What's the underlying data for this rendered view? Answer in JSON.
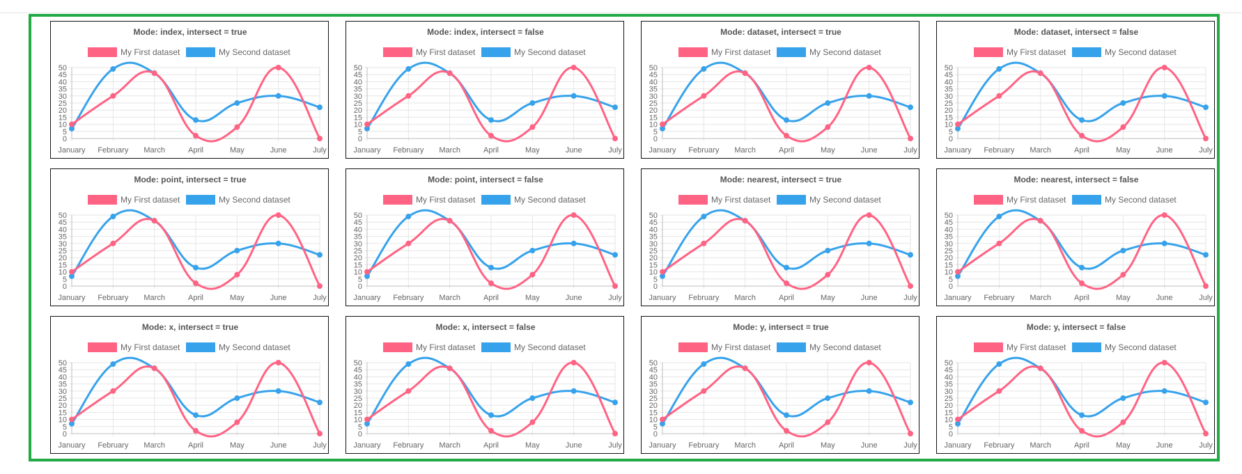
{
  "page": {
    "frame_color": "#22aa44"
  },
  "legend": {
    "first_label": "My First dataset",
    "second_label": "My Second dataset",
    "first_color": "#ff6384",
    "second_color": "#36a2eb"
  },
  "chart_data": [
    {
      "type": "line",
      "title": "Mode: index, intersect = true",
      "categories": [
        "January",
        "February",
        "March",
        "April",
        "May",
        "June",
        "July"
      ],
      "series": [
        {
          "name": "My First dataset",
          "values": [
            10,
            30,
            46,
            2,
            8,
            50,
            0
          ]
        },
        {
          "name": "My Second dataset",
          "values": [
            7,
            49,
            46,
            13,
            25,
            30,
            22
          ]
        }
      ],
      "ylim": [
        0,
        50
      ],
      "yticks": [
        0,
        5,
        10,
        15,
        20,
        25,
        30,
        35,
        40,
        45,
        50
      ]
    },
    {
      "type": "line",
      "title": "Mode: index, intersect = false",
      "categories": [
        "January",
        "February",
        "March",
        "April",
        "May",
        "June",
        "July"
      ],
      "series": [
        {
          "name": "My First dataset",
          "values": [
            10,
            30,
            46,
            2,
            8,
            50,
            0
          ]
        },
        {
          "name": "My Second dataset",
          "values": [
            7,
            49,
            46,
            13,
            25,
            30,
            22
          ]
        }
      ],
      "ylim": [
        0,
        50
      ],
      "yticks": [
        0,
        5,
        10,
        15,
        20,
        25,
        30,
        35,
        40,
        45,
        50
      ]
    },
    {
      "type": "line",
      "title": "Mode: dataset, intersect = true",
      "categories": [
        "January",
        "February",
        "March",
        "April",
        "May",
        "June",
        "July"
      ],
      "series": [
        {
          "name": "My First dataset",
          "values": [
            10,
            30,
            46,
            2,
            8,
            50,
            0
          ]
        },
        {
          "name": "My Second dataset",
          "values": [
            7,
            49,
            46,
            13,
            25,
            30,
            22
          ]
        }
      ],
      "ylim": [
        0,
        50
      ],
      "yticks": [
        0,
        5,
        10,
        15,
        20,
        25,
        30,
        35,
        40,
        45,
        50
      ]
    },
    {
      "type": "line",
      "title": "Mode: dataset, intersect = false",
      "categories": [
        "January",
        "February",
        "March",
        "April",
        "May",
        "June",
        "July"
      ],
      "series": [
        {
          "name": "My First dataset",
          "values": [
            10,
            30,
            46,
            2,
            8,
            50,
            0
          ]
        },
        {
          "name": "My Second dataset",
          "values": [
            7,
            49,
            46,
            13,
            25,
            30,
            22
          ]
        }
      ],
      "ylim": [
        0,
        50
      ],
      "yticks": [
        0,
        5,
        10,
        15,
        20,
        25,
        30,
        35,
        40,
        45,
        50
      ]
    },
    {
      "type": "line",
      "title": "Mode: point, intersect = true",
      "categories": [
        "January",
        "February",
        "March",
        "April",
        "May",
        "June",
        "July"
      ],
      "series": [
        {
          "name": "My First dataset",
          "values": [
            10,
            30,
            46,
            2,
            8,
            50,
            0
          ]
        },
        {
          "name": "My Second dataset",
          "values": [
            7,
            49,
            46,
            13,
            25,
            30,
            22
          ]
        }
      ],
      "ylim": [
        0,
        50
      ],
      "yticks": [
        0,
        5,
        10,
        15,
        20,
        25,
        30,
        35,
        40,
        45,
        50
      ]
    },
    {
      "type": "line",
      "title": "Mode: point, intersect = false",
      "categories": [
        "January",
        "February",
        "March",
        "April",
        "May",
        "June",
        "July"
      ],
      "series": [
        {
          "name": "My First dataset",
          "values": [
            10,
            30,
            46,
            2,
            8,
            50,
            0
          ]
        },
        {
          "name": "My Second dataset",
          "values": [
            7,
            49,
            46,
            13,
            25,
            30,
            22
          ]
        }
      ],
      "ylim": [
        0,
        50
      ],
      "yticks": [
        0,
        5,
        10,
        15,
        20,
        25,
        30,
        35,
        40,
        45,
        50
      ]
    },
    {
      "type": "line",
      "title": "Mode: nearest, intersect = true",
      "categories": [
        "January",
        "February",
        "March",
        "April",
        "May",
        "June",
        "July"
      ],
      "series": [
        {
          "name": "My First dataset",
          "values": [
            10,
            30,
            46,
            2,
            8,
            50,
            0
          ]
        },
        {
          "name": "My Second dataset",
          "values": [
            7,
            49,
            46,
            13,
            25,
            30,
            22
          ]
        }
      ],
      "ylim": [
        0,
        50
      ],
      "yticks": [
        0,
        5,
        10,
        15,
        20,
        25,
        30,
        35,
        40,
        45,
        50
      ]
    },
    {
      "type": "line",
      "title": "Mode: nearest, intersect = false",
      "categories": [
        "January",
        "February",
        "March",
        "April",
        "May",
        "June",
        "July"
      ],
      "series": [
        {
          "name": "My First dataset",
          "values": [
            10,
            30,
            46,
            2,
            8,
            50,
            0
          ]
        },
        {
          "name": "My Second dataset",
          "values": [
            7,
            49,
            46,
            13,
            25,
            30,
            22
          ]
        }
      ],
      "ylim": [
        0,
        50
      ],
      "yticks": [
        0,
        5,
        10,
        15,
        20,
        25,
        30,
        35,
        40,
        45,
        50
      ]
    },
    {
      "type": "line",
      "title": "Mode: x, intersect = true",
      "categories": [
        "January",
        "February",
        "March",
        "April",
        "May",
        "June",
        "July"
      ],
      "series": [
        {
          "name": "My First dataset",
          "values": [
            10,
            30,
            46,
            2,
            8,
            50,
            0
          ]
        },
        {
          "name": "My Second dataset",
          "values": [
            7,
            49,
            46,
            13,
            25,
            30,
            22
          ]
        }
      ],
      "ylim": [
        0,
        50
      ],
      "yticks": [
        0,
        5,
        10,
        15,
        20,
        25,
        30,
        35,
        40,
        45,
        50
      ]
    },
    {
      "type": "line",
      "title": "Mode: x, intersect = false",
      "categories": [
        "January",
        "February",
        "March",
        "April",
        "May",
        "June",
        "July"
      ],
      "series": [
        {
          "name": "My First dataset",
          "values": [
            10,
            30,
            46,
            2,
            8,
            50,
            0
          ]
        },
        {
          "name": "My Second dataset",
          "values": [
            7,
            49,
            46,
            13,
            25,
            30,
            22
          ]
        }
      ],
      "ylim": [
        0,
        50
      ],
      "yticks": [
        0,
        5,
        10,
        15,
        20,
        25,
        30,
        35,
        40,
        45,
        50
      ]
    },
    {
      "type": "line",
      "title": "Mode: y, intersect = true",
      "categories": [
        "January",
        "February",
        "March",
        "April",
        "May",
        "June",
        "July"
      ],
      "series": [
        {
          "name": "My First dataset",
          "values": [
            10,
            30,
            46,
            2,
            8,
            50,
            0
          ]
        },
        {
          "name": "My Second dataset",
          "values": [
            7,
            49,
            46,
            13,
            25,
            30,
            22
          ]
        }
      ],
      "ylim": [
        0,
        50
      ],
      "yticks": [
        0,
        5,
        10,
        15,
        20,
        25,
        30,
        35,
        40,
        45,
        50
      ]
    },
    {
      "type": "line",
      "title": "Mode: y, intersect = false",
      "categories": [
        "January",
        "February",
        "March",
        "April",
        "May",
        "June",
        "July"
      ],
      "series": [
        {
          "name": "My First dataset",
          "values": [
            10,
            30,
            46,
            2,
            8,
            50,
            0
          ]
        },
        {
          "name": "My Second dataset",
          "values": [
            7,
            49,
            46,
            13,
            25,
            30,
            22
          ]
        }
      ],
      "ylim": [
        0,
        50
      ],
      "yticks": [
        0,
        5,
        10,
        15,
        20,
        25,
        30,
        35,
        40,
        45,
        50
      ]
    }
  ]
}
